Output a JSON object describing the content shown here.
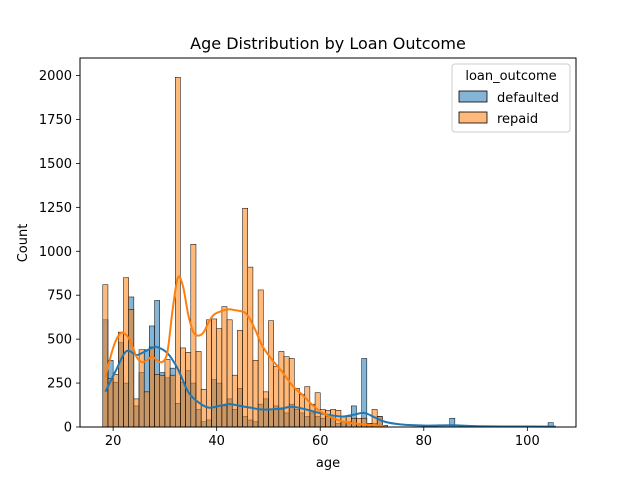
{
  "chart_data": {
    "type": "bar",
    "title": "Age Distribution by Loan Outcome",
    "xlabel": "age",
    "ylabel": "Count",
    "xlim": [
      13.6,
      109.4
    ],
    "ylim": [
      0,
      2100
    ],
    "xticks": [
      20,
      40,
      60,
      80,
      100
    ],
    "yticks": [
      0,
      250,
      500,
      750,
      1000,
      1250,
      1500,
      1750,
      2000
    ],
    "grid": false,
    "bin_width": 1,
    "legend": {
      "title": "loan_outcome",
      "placement": "top-right",
      "entries": [
        "defaulted",
        "repaid"
      ]
    },
    "series": [
      {
        "name": "defaulted",
        "color": "#1f77b4",
        "bars": [
          [
            18,
            610
          ],
          [
            19,
            380
          ],
          [
            20,
            255
          ],
          [
            21,
            480
          ],
          [
            22,
            250
          ],
          [
            23,
            740
          ],
          [
            24,
            120
          ],
          [
            25,
            310
          ],
          [
            26,
            440
          ],
          [
            27,
            575
          ],
          [
            28,
            720
          ],
          [
            29,
            310
          ],
          [
            30,
            280
          ],
          [
            31,
            335
          ],
          [
            32,
            135
          ],
          [
            33,
            255
          ],
          [
            34,
            320
          ],
          [
            35,
            250
          ],
          [
            36,
            100
          ],
          [
            37,
            30
          ],
          [
            38,
            40
          ],
          [
            39,
            270
          ],
          [
            40,
            250
          ],
          [
            41,
            120
          ],
          [
            42,
            160
          ],
          [
            43,
            100
          ],
          [
            44,
            220
          ],
          [
            45,
            60
          ],
          [
            46,
            40
          ],
          [
            47,
            30
          ],
          [
            48,
            130
          ],
          [
            49,
            160
          ],
          [
            50,
            100
          ],
          [
            51,
            120
          ],
          [
            52,
            100
          ],
          [
            53,
            80
          ],
          [
            54,
            130
          ],
          [
            55,
            100
          ],
          [
            56,
            80
          ],
          [
            57,
            60
          ],
          [
            58,
            80
          ],
          [
            59,
            60
          ],
          [
            60,
            50
          ],
          [
            61,
            60
          ],
          [
            62,
            50
          ],
          [
            63,
            20
          ],
          [
            64,
            30
          ],
          [
            65,
            30
          ],
          [
            66,
            120
          ],
          [
            67,
            20
          ],
          [
            68,
            390
          ],
          [
            69,
            20
          ],
          [
            70,
            20
          ],
          [
            71,
            60
          ],
          [
            72,
            10
          ],
          [
            85,
            50
          ],
          [
            104,
            25
          ]
        ]
      },
      {
        "name": "repaid",
        "color": "#ff7f0e",
        "bars": [
          [
            18,
            810
          ],
          [
            19,
            275
          ],
          [
            20,
            300
          ],
          [
            21,
            540
          ],
          [
            22,
            850
          ],
          [
            23,
            670
          ],
          [
            24,
            160
          ],
          [
            25,
            440
          ],
          [
            26,
            200
          ],
          [
            27,
            455
          ],
          [
            28,
            300
          ],
          [
            29,
            295
          ],
          [
            30,
            385
          ],
          [
            31,
            295
          ],
          [
            32,
            1990
          ],
          [
            33,
            450
          ],
          [
            34,
            425
          ],
          [
            35,
            1040
          ],
          [
            36,
            430
          ],
          [
            37,
            215
          ],
          [
            38,
            610
          ],
          [
            39,
            615
          ],
          [
            40,
            560
          ],
          [
            41,
            685
          ],
          [
            42,
            610
          ],
          [
            43,
            295
          ],
          [
            44,
            550
          ],
          [
            45,
            1245
          ],
          [
            46,
            910
          ],
          [
            47,
            380
          ],
          [
            48,
            780
          ],
          [
            49,
            200
          ],
          [
            50,
            605
          ],
          [
            51,
            345
          ],
          [
            52,
            430
          ],
          [
            53,
            400
          ],
          [
            54,
            390
          ],
          [
            55,
            220
          ],
          [
            56,
            185
          ],
          [
            57,
            230
          ],
          [
            58,
            130
          ],
          [
            59,
            195
          ],
          [
            60,
            100
          ],
          [
            61,
            95
          ],
          [
            62,
            100
          ],
          [
            63,
            95
          ],
          [
            64,
            60
          ],
          [
            65,
            60
          ],
          [
            66,
            50
          ],
          [
            67,
            50
          ],
          [
            68,
            50
          ],
          [
            69,
            20
          ],
          [
            70,
            100
          ],
          [
            71,
            60
          ]
        ]
      }
    ],
    "kde": [
      {
        "name": "defaulted",
        "color": "#1f77b4",
        "points": [
          [
            18,
            200
          ],
          [
            20,
            320
          ],
          [
            22,
            430
          ],
          [
            24,
            410
          ],
          [
            25,
            420
          ],
          [
            27,
            450
          ],
          [
            28,
            455
          ],
          [
            30,
            420
          ],
          [
            32,
            330
          ],
          [
            34,
            200
          ],
          [
            36,
            140
          ],
          [
            38,
            110
          ],
          [
            40,
            120
          ],
          [
            42,
            130
          ],
          [
            44,
            120
          ],
          [
            46,
            110
          ],
          [
            48,
            100
          ],
          [
            50,
            100
          ],
          [
            52,
            105
          ],
          [
            54,
            115
          ],
          [
            56,
            105
          ],
          [
            58,
            90
          ],
          [
            60,
            75
          ],
          [
            62,
            65
          ],
          [
            64,
            60
          ],
          [
            66,
            70
          ],
          [
            68,
            80
          ],
          [
            70,
            55
          ],
          [
            72,
            30
          ],
          [
            75,
            15
          ],
          [
            80,
            8
          ],
          [
            85,
            10
          ],
          [
            90,
            4
          ],
          [
            100,
            3
          ],
          [
            105,
            2
          ]
        ]
      },
      {
        "name": "repaid",
        "color": "#ff7f0e",
        "points": [
          [
            18,
            280
          ],
          [
            19,
            400
          ],
          [
            20,
            490
          ],
          [
            21,
            535
          ],
          [
            22,
            525
          ],
          [
            23,
            480
          ],
          [
            24,
            400
          ],
          [
            25,
            370
          ],
          [
            26,
            380
          ],
          [
            27,
            400
          ],
          [
            28,
            380
          ],
          [
            29,
            370
          ],
          [
            30,
            430
          ],
          [
            31,
            670
          ],
          [
            32,
            850
          ],
          [
            33,
            800
          ],
          [
            34,
            640
          ],
          [
            35,
            540
          ],
          [
            36,
            520
          ],
          [
            37,
            540
          ],
          [
            38,
            600
          ],
          [
            39,
            640
          ],
          [
            40,
            655
          ],
          [
            41,
            665
          ],
          [
            42,
            670
          ],
          [
            43,
            665
          ],
          [
            44,
            660
          ],
          [
            45,
            650
          ],
          [
            46,
            610
          ],
          [
            47,
            550
          ],
          [
            48,
            480
          ],
          [
            49,
            430
          ],
          [
            50,
            390
          ],
          [
            51,
            355
          ],
          [
            52,
            320
          ],
          [
            53,
            280
          ],
          [
            54,
            240
          ],
          [
            55,
            210
          ],
          [
            56,
            185
          ],
          [
            57,
            155
          ],
          [
            58,
            125
          ],
          [
            59,
            100
          ],
          [
            60,
            80
          ],
          [
            62,
            50
          ],
          [
            64,
            30
          ],
          [
            66,
            20
          ],
          [
            68,
            15
          ],
          [
            70,
            10
          ],
          [
            72,
            4
          ]
        ]
      }
    ]
  }
}
